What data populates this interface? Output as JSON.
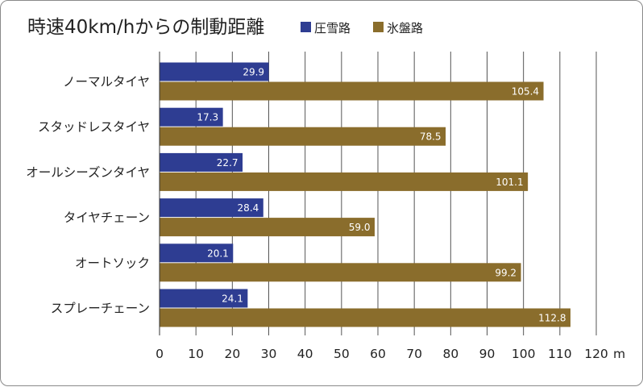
{
  "chart_data": {
    "type": "bar",
    "orientation": "horizontal",
    "title": "時速40km/hからの制動距離",
    "categories": [
      "ノーマルタイヤ",
      "スタッドレスタイヤ",
      "オールシーズンタイヤ",
      "タイヤチェーン",
      "オートソック",
      "スプレーチェーン"
    ],
    "series": [
      {
        "name": "圧雪路",
        "color": "#2e3d92",
        "values": [
          29.9,
          17.3,
          22.7,
          28.4,
          20.1,
          24.1
        ],
        "labels": [
          "29.9",
          "17.3",
          "22.7",
          "28.4",
          "20.1",
          "24.1"
        ]
      },
      {
        "name": "氷盤路",
        "color": "#8a6d2c",
        "values": [
          105.4,
          78.5,
          101.1,
          59.0,
          99.2,
          112.8
        ],
        "labels": [
          "105.4",
          "78.5",
          "101.1",
          "59.0",
          "99.2",
          "112.8"
        ]
      }
    ],
    "xlim": [
      0,
      120
    ],
    "ticks": [
      0,
      10,
      20,
      30,
      40,
      50,
      60,
      70,
      80,
      90,
      100,
      110,
      120
    ],
    "xunit": "m",
    "grid": true,
    "legend": "top"
  }
}
